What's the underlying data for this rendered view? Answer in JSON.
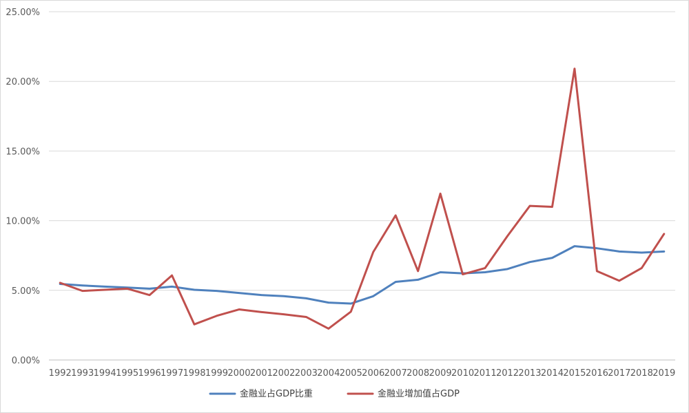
{
  "chart_data": {
    "type": "line",
    "title": "",
    "xlabel": "",
    "ylabel": "",
    "ylim": [
      0,
      0.25
    ],
    "y_ticks": [
      "0.00%",
      "5.00%",
      "10.00%",
      "15.00%",
      "20.00%",
      "25.00%"
    ],
    "grid": true,
    "legend_position": "bottom",
    "categories": [
      "1992",
      "1993",
      "1994",
      "1995",
      "1996",
      "1997",
      "1998",
      "1999",
      "2000",
      "2001",
      "2002",
      "2003",
      "2004",
      "2005",
      "2006",
      "2007",
      "2008",
      "2009",
      "2010",
      "2011",
      "2012",
      "2013",
      "2014",
      "2015",
      "2016",
      "2017",
      "2018",
      "2019"
    ],
    "series": [
      {
        "name": "金融业占GDP比重",
        "color": "#4f81bd",
        "values": [
          0.0546,
          0.0535,
          0.0527,
          0.052,
          0.0512,
          0.0527,
          0.0504,
          0.0496,
          0.0481,
          0.0466,
          0.0458,
          0.0443,
          0.0412,
          0.0405,
          0.0458,
          0.0561,
          0.0576,
          0.063,
          0.0622,
          0.063,
          0.0653,
          0.0703,
          0.0733,
          0.0817,
          0.0802,
          0.0779,
          0.0771,
          0.0779
        ]
      },
      {
        "name": "金融业增加值占GDP",
        "color": "#c0504d",
        "values": [
          0.0554,
          0.0496,
          0.0504,
          0.0512,
          0.0466,
          0.0607,
          0.0256,
          0.0317,
          0.0363,
          0.0344,
          0.0328,
          0.0309,
          0.0225,
          0.0347,
          0.0775,
          0.1038,
          0.0638,
          0.1194,
          0.0615,
          0.066,
          0.089,
          0.1106,
          0.1099,
          0.2091,
          0.0638,
          0.0569,
          0.066,
          0.0905
        ]
      }
    ]
  }
}
